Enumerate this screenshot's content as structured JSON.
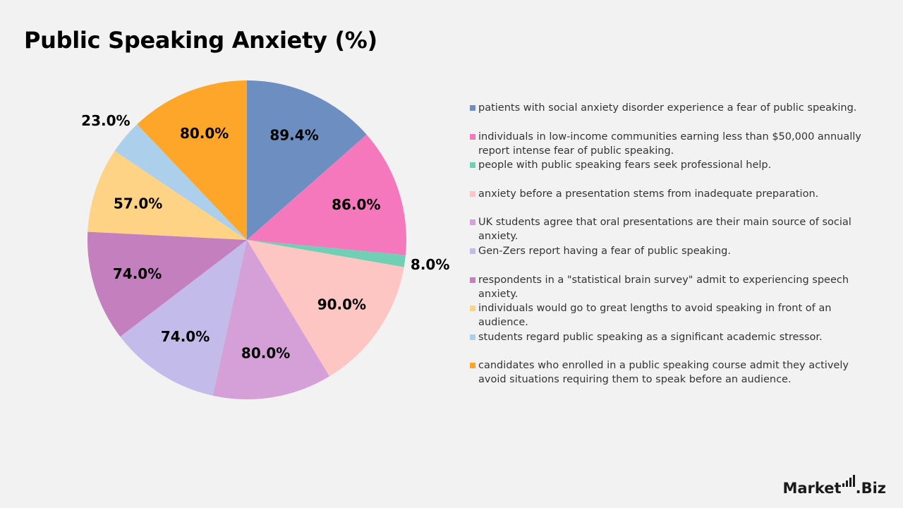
{
  "chart_data": {
    "type": "pie",
    "title": "Public Speaking Anxiety (%)",
    "value_suffix": "%",
    "slices": [
      {
        "label": "patients with social anxiety disorder experience a fear of public speaking.",
        "value": 89.4,
        "display": "89.4%",
        "color": "#6d8ec1"
      },
      {
        "label": "individuals in low-income communities earning less than $50,000 annually report intense fear of public speaking.",
        "value": 86.0,
        "display": "86.0%",
        "color": "#f678bc"
      },
      {
        "label": "people with public speaking fears seek professional help.",
        "value": 8.0,
        "display": "8.0%",
        "color": "#6fd0b5"
      },
      {
        "label": "anxiety before a presentation stems from inadequate preparation.",
        "value": 90.0,
        "display": "90.0%",
        "color": "#fec6c3"
      },
      {
        "label": "UK students agree that oral presentations are their main source of social anxiety.",
        "value": 80.0,
        "display": "80.0%",
        "color": "#d5a0d8"
      },
      {
        "label": " Gen-Zers report having a fear of public speaking.",
        "value": 74.0,
        "display": "74.0%",
        "color": "#c3bbe9"
      },
      {
        "label": "respondents in a \"statistical brain survey\" admit to experiencing speech anxiety.",
        "value": 74.0,
        "display": "74.0%",
        "color": "#c47fbf"
      },
      {
        "label": " individuals would go to great lengths to avoid speaking in front of an audience.",
        "value": 57.0,
        "display": "57.0%",
        "color": "#fed385"
      },
      {
        "label": "students regard public speaking as a significant academic stressor.",
        "value": 23.0,
        "display": "23.0%",
        "color": "#acd0ec"
      },
      {
        "label": "candidates who enrolled in a public speaking course admit they actively avoid situations requiring them to speak before an audience.",
        "value": 80.0,
        "display": "80.0%",
        "color": "#fea629"
      }
    ],
    "legend_position": "right"
  },
  "logo": {
    "text_main": "Market",
    "text_suffix": ".Biz"
  }
}
